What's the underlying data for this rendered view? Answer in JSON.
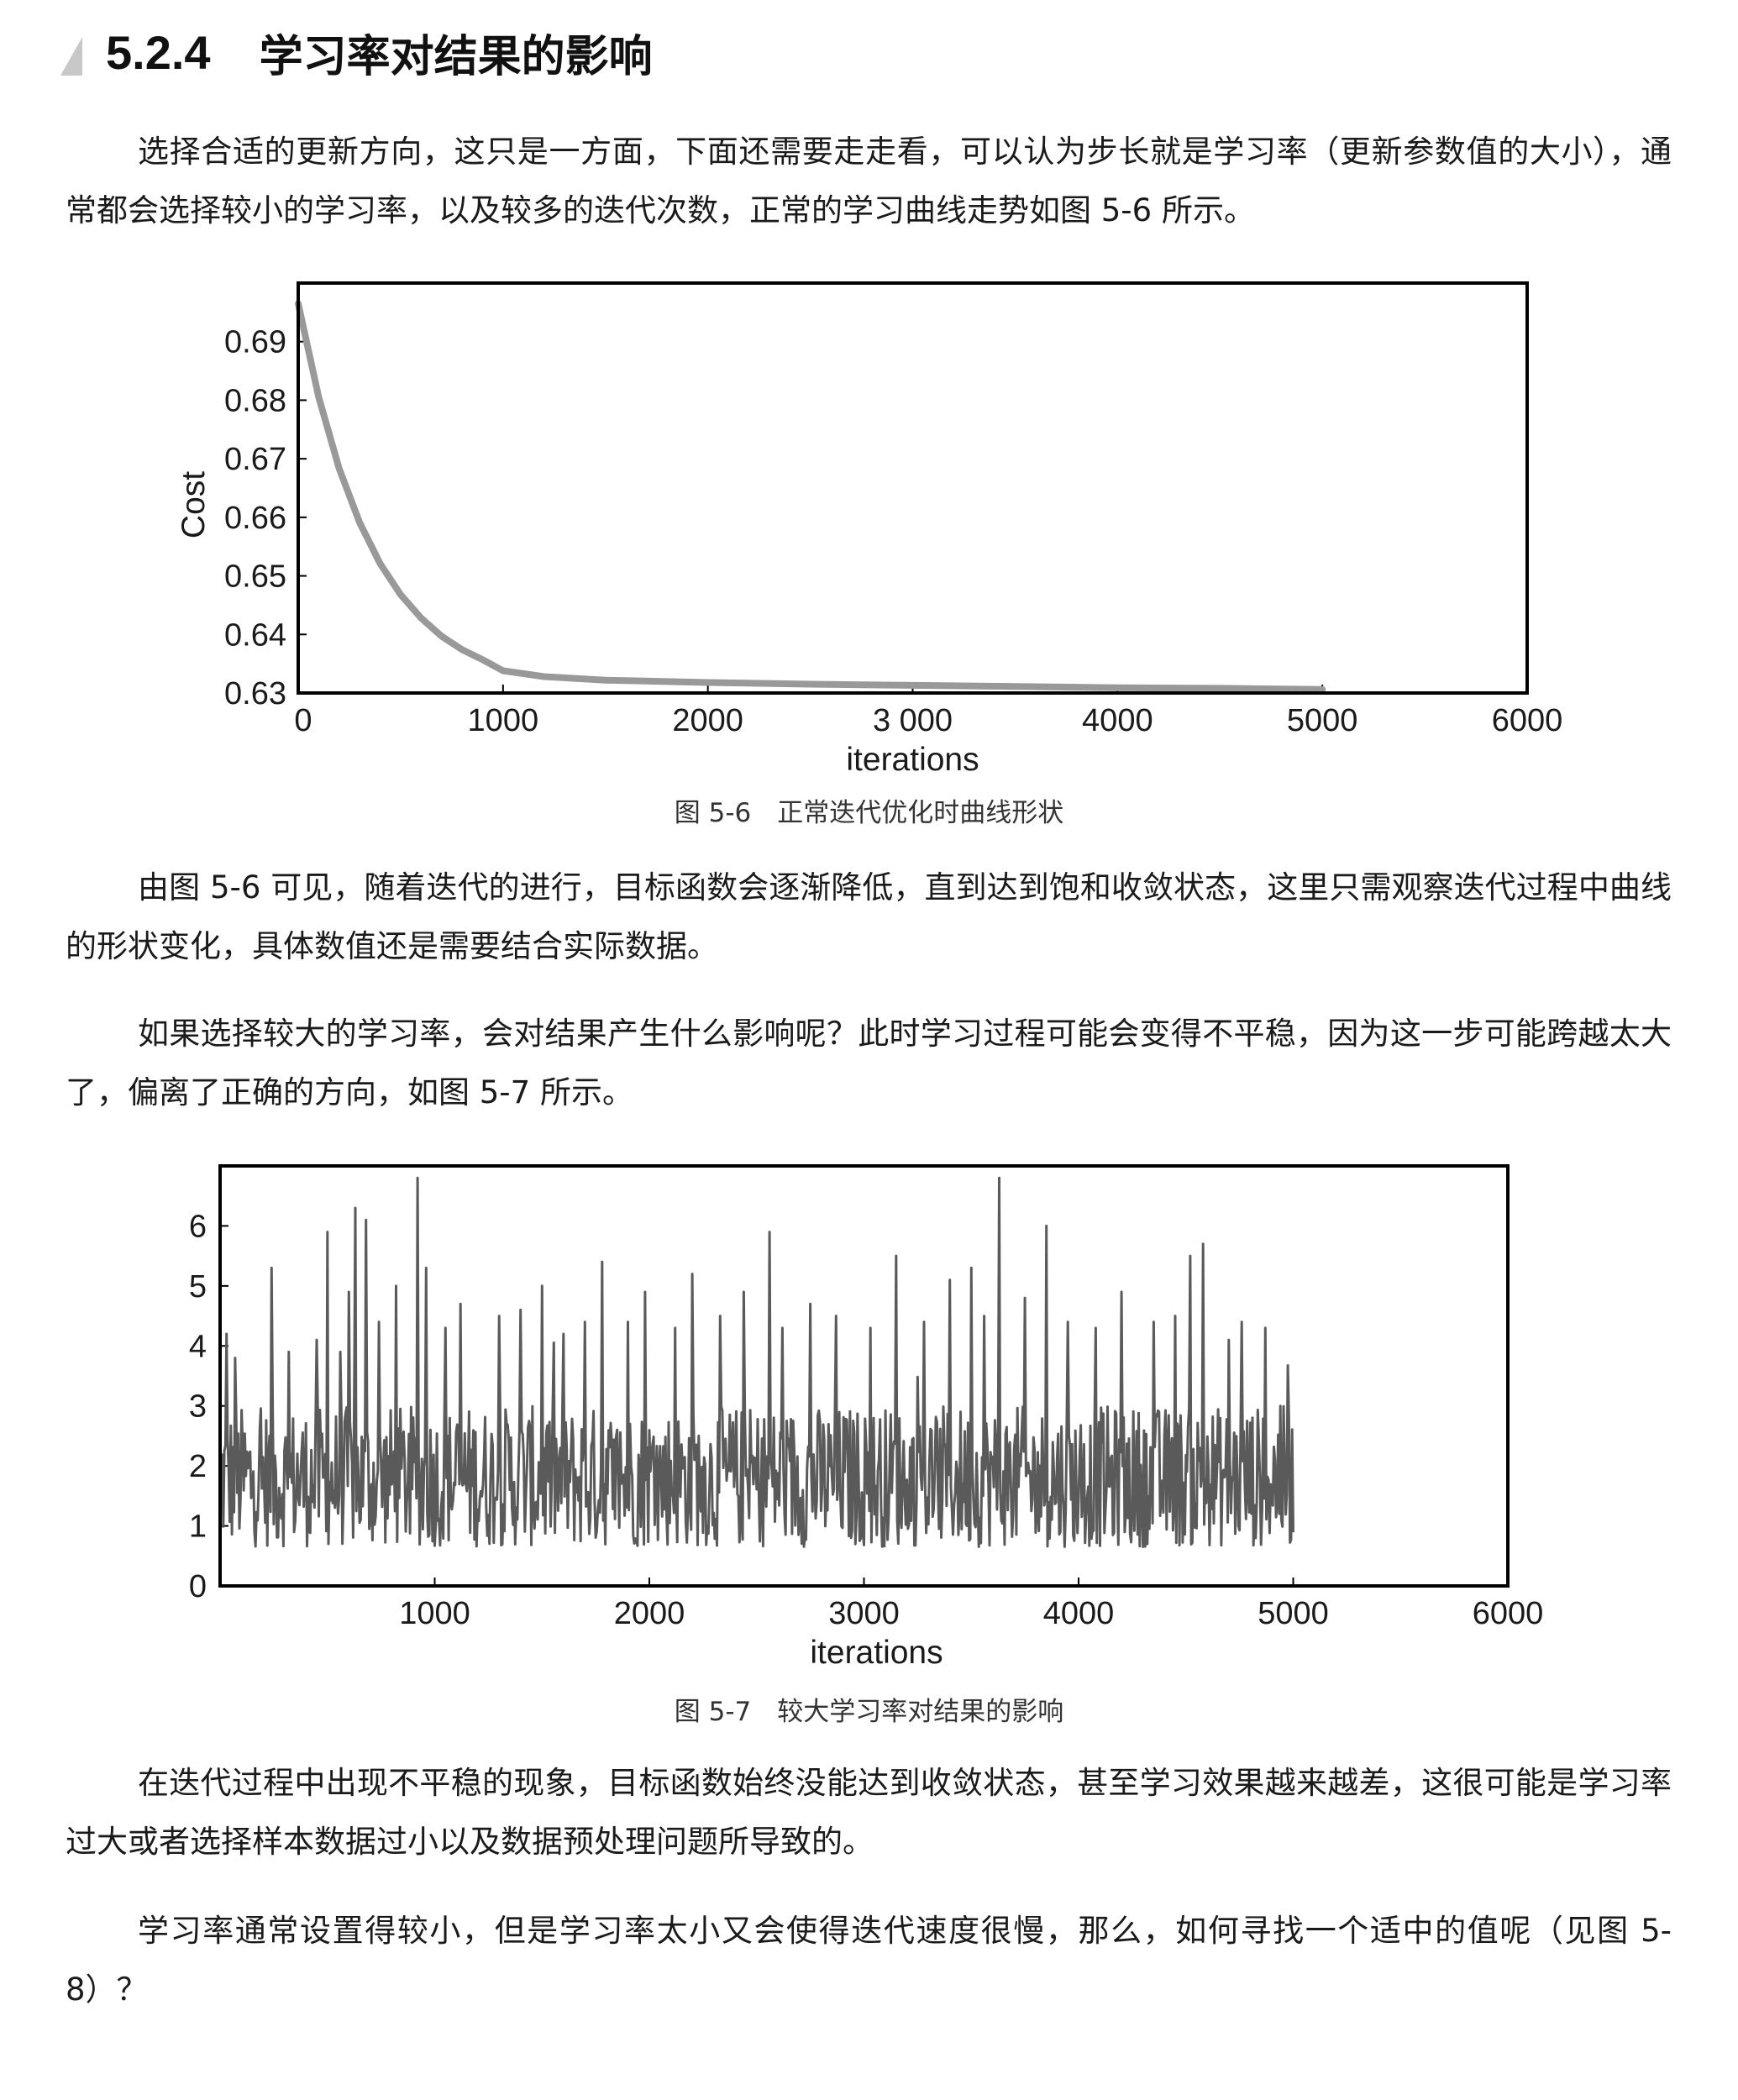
{
  "section": {
    "number": "5.2.4",
    "title": "学习率对结果的影响"
  },
  "paragraphs": {
    "p1": "选择合适的更新方向，这只是一方面，下面还需要走走看，可以认为步长就是学习率（更新参数值的大小），通常都会选择较小的学习率，以及较多的迭代次数，正常的学习曲线走势如图 5-6 所示。",
    "p2": "由图 5-6 可见，随着迭代的进行，目标函数会逐渐降低，直到达到饱和收敛状态，这里只需观察迭代过程中曲线的形状变化，具体数值还是需要结合实际数据。",
    "p3": "如果选择较大的学习率，会对结果产生什么影响呢？此时学习过程可能会变得不平稳，因为这一步可能跨越太大了，偏离了正确的方向，如图 5-7 所示。",
    "p4": "在迭代过程中出现不平稳的现象，目标函数始终没能达到收敛状态，甚至学习效果越来越差，这很可能是学习率过大或者选择样本数据过小以及数据预处理问题所导致的。",
    "p5": "学习率通常设置得较小，但是学习率太小又会使得迭代速度很慢，那么，如何寻找一个适中的值呢（见图 5-8）？"
  },
  "figures": {
    "fig56_caption": "图 5-6　正常迭代优化时曲线形状",
    "fig57_caption": "图 5-7　较大学习率对结果的影响"
  },
  "chart_data": [
    {
      "type": "line",
      "title": "",
      "xlabel": "iterations",
      "ylabel": "Cost",
      "xlim": [
        0,
        6000
      ],
      "ylim": [
        0.63,
        0.7
      ],
      "xtick_labels": [
        "0",
        "1000",
        "2000",
        "3 000",
        "4000",
        "5000",
        "6000"
      ],
      "ytick_labels": [
        "0.63",
        "0.64",
        "0.65",
        "0.66",
        "0.67",
        "0.68",
        "0.69"
      ],
      "line_color": "#999999",
      "series": [
        {
          "x": [
            0,
            100,
            200,
            300,
            400,
            500,
            600,
            700,
            800,
            900,
            1000,
            1200,
            1500,
            2000,
            2500,
            3000,
            3500,
            4000,
            4500,
            5000
          ],
          "y": [
            0.6965,
            0.6805,
            0.6683,
            0.6591,
            0.6521,
            0.6468,
            0.6428,
            0.6397,
            0.6374,
            0.6357,
            0.6338,
            0.6328,
            0.6322,
            0.6318,
            0.6315,
            0.6313,
            0.6311,
            0.6309,
            0.6308,
            0.6306
          ]
        }
      ]
    },
    {
      "type": "line",
      "title": "",
      "xlabel": "iterations",
      "ylabel": "",
      "xlim": [
        0,
        6000
      ],
      "ylim": [
        0,
        7
      ],
      "xtick_labels": [
        "1000",
        "2000",
        "3000",
        "4000",
        "5000",
        "6000"
      ],
      "ytick_labels": [
        "0",
        "1",
        "2",
        "3",
        "4",
        "5",
        "6"
      ],
      "line_color": "#5a5a5a",
      "description_range": "noisy values between ~0.65 and ~6.8 over iterations 0–5000",
      "series": [
        {
          "x_start": 0,
          "x_end": 5000,
          "base_min": 0.65,
          "base_max": 3.0,
          "spikes": [
            {
              "x": 30,
              "y": 4.2
            },
            {
              "x": 70,
              "y": 3.8
            },
            {
              "x": 240,
              "y": 5.3
            },
            {
              "x": 320,
              "y": 3.9
            },
            {
              "x": 450,
              "y": 4.1
            },
            {
              "x": 500,
              "y": 5.9
            },
            {
              "x": 560,
              "y": 3.9
            },
            {
              "x": 600,
              "y": 4.9
            },
            {
              "x": 630,
              "y": 6.3
            },
            {
              "x": 680,
              "y": 6.1
            },
            {
              "x": 740,
              "y": 4.4
            },
            {
              "x": 820,
              "y": 5.0
            },
            {
              "x": 920,
              "y": 6.8
            },
            {
              "x": 960,
              "y": 5.3
            },
            {
              "x": 1050,
              "y": 4.3
            },
            {
              "x": 1120,
              "y": 4.7
            },
            {
              "x": 1300,
              "y": 4.5
            },
            {
              "x": 1400,
              "y": 4.6
            },
            {
              "x": 1500,
              "y": 5.0
            },
            {
              "x": 1600,
              "y": 4.2
            },
            {
              "x": 1700,
              "y": 4.4
            },
            {
              "x": 1780,
              "y": 5.4
            },
            {
              "x": 1900,
              "y": 4.4
            },
            {
              "x": 1980,
              "y": 4.9
            },
            {
              "x": 2120,
              "y": 4.3
            },
            {
              "x": 2200,
              "y": 5.2
            },
            {
              "x": 2330,
              "y": 4.5
            },
            {
              "x": 2440,
              "y": 4.9
            },
            {
              "x": 2560,
              "y": 5.9
            },
            {
              "x": 2620,
              "y": 4.3
            },
            {
              "x": 2750,
              "y": 4.7
            },
            {
              "x": 2870,
              "y": 4.5
            },
            {
              "x": 3030,
              "y": 4.3
            },
            {
              "x": 3150,
              "y": 5.5
            },
            {
              "x": 3280,
              "y": 4.4
            },
            {
              "x": 3400,
              "y": 5.1
            },
            {
              "x": 3500,
              "y": 5.3
            },
            {
              "x": 3560,
              "y": 4.5
            },
            {
              "x": 3630,
              "y": 6.8
            },
            {
              "x": 3750,
              "y": 4.8
            },
            {
              "x": 3850,
              "y": 6.0
            },
            {
              "x": 3950,
              "y": 4.4
            },
            {
              "x": 4080,
              "y": 4.3
            },
            {
              "x": 4200,
              "y": 4.9
            },
            {
              "x": 4350,
              "y": 4.4
            },
            {
              "x": 4450,
              "y": 4.5
            },
            {
              "x": 4520,
              "y": 5.5
            },
            {
              "x": 4580,
              "y": 5.7
            },
            {
              "x": 4700,
              "y": 4.1
            },
            {
              "x": 4760,
              "y": 4.4
            },
            {
              "x": 4870,
              "y": 4.3
            },
            {
              "x": 4940,
              "y": 3.0
            }
          ]
        }
      ]
    }
  ]
}
